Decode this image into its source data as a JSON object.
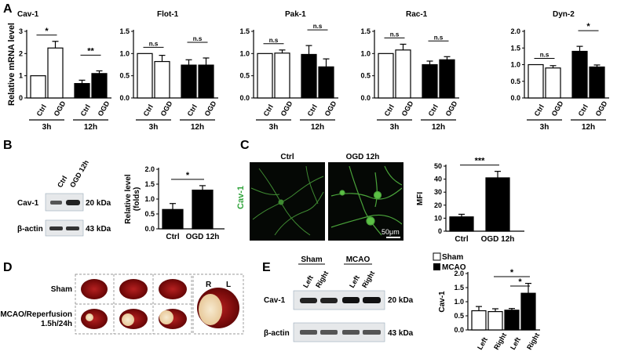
{
  "panels": {
    "A": "A",
    "B": "B",
    "C": "C",
    "D": "D",
    "E": "E"
  },
  "panel_a": {
    "ylabel": "Relative mRNA level",
    "bar_labels": [
      "Ctrl",
      "OGD",
      "Ctrl",
      "OGD"
    ],
    "groups": [
      "3h",
      "12h"
    ]
  },
  "chart_data": [
    {
      "type": "bar",
      "title": "Cav-1",
      "ylabel": "Relative mRNA level",
      "categories": [
        "Ctrl 3h",
        "OGD 3h",
        "Ctrl 12h",
        "OGD 12h"
      ],
      "values": [
        1.0,
        2.25,
        0.65,
        1.1
      ],
      "errors": [
        0,
        0.3,
        0.15,
        0.12
      ],
      "ylim": [
        0,
        3
      ],
      "fill": [
        "white",
        "white",
        "black",
        "black"
      ],
      "significance": [
        {
          "between": [
            0,
            1
          ],
          "label": "*"
        },
        {
          "between": [
            2,
            3
          ],
          "label": "**"
        }
      ]
    },
    {
      "type": "bar",
      "title": "Flot-1",
      "categories": [
        "Ctrl 3h",
        "OGD 3h",
        "Ctrl 12h",
        "OGD 12h"
      ],
      "values": [
        1.0,
        0.82,
        0.74,
        0.74
      ],
      "errors": [
        0,
        0.14,
        0.12,
        0.16
      ],
      "ylim": [
        0,
        1.5
      ],
      "yticks": [
        "0.0",
        "0.5",
        "1.0",
        "1.5"
      ],
      "fill": [
        "white",
        "white",
        "black",
        "black"
      ],
      "significance": [
        {
          "between": [
            0,
            1
          ],
          "label": "n.s"
        },
        {
          "between": [
            2,
            3
          ],
          "label": "n.s"
        }
      ]
    },
    {
      "type": "bar",
      "title": "Pak-1",
      "categories": [
        "Ctrl 3h",
        "OGD 3h",
        "Ctrl 12h",
        "OGD 12h"
      ],
      "values": [
        1.0,
        1.01,
        0.98,
        0.7
      ],
      "errors": [
        0,
        0.07,
        0.2,
        0.18
      ],
      "ylim": [
        0,
        1.5
      ],
      "yticks": [
        "0.0",
        "0.5",
        "1.0",
        "1.5"
      ],
      "fill": [
        "white",
        "white",
        "black",
        "black"
      ],
      "significance": [
        {
          "between": [
            0,
            1
          ],
          "label": "n.s"
        },
        {
          "between": [
            2,
            3
          ],
          "label": "n.s"
        }
      ]
    },
    {
      "type": "bar",
      "title": "Rac-1",
      "categories": [
        "Ctrl 3h",
        "OGD 3h",
        "Ctrl 12h",
        "OGD 12h"
      ],
      "values": [
        1.0,
        1.08,
        0.75,
        0.86
      ],
      "errors": [
        0,
        0.13,
        0.08,
        0.07
      ],
      "ylim": [
        0,
        1.5
      ],
      "yticks": [
        "0.0",
        "0.5",
        "1.0",
        "1.5"
      ],
      "fill": [
        "white",
        "white",
        "black",
        "black"
      ],
      "significance": [
        {
          "between": [
            0,
            1
          ],
          "label": "n.s"
        },
        {
          "between": [
            2,
            3
          ],
          "label": "n.s"
        }
      ]
    },
    {
      "type": "bar",
      "title": "Dyn-2",
      "categories": [
        "Ctrl 3h",
        "OGD 3h",
        "Ctrl 12h",
        "OGD 12h"
      ],
      "values": [
        1.0,
        0.9,
        1.4,
        0.93
      ],
      "errors": [
        0,
        0.07,
        0.15,
        0.06
      ],
      "ylim": [
        0,
        2
      ],
      "yticks": [
        "0.0",
        "0.5",
        "1.0",
        "1.5",
        "2.0"
      ],
      "fill": [
        "white",
        "white",
        "black",
        "black"
      ],
      "significance": [
        {
          "between": [
            0,
            1
          ],
          "label": "n.s"
        },
        {
          "between": [
            2,
            3
          ],
          "label": "*"
        }
      ]
    },
    {
      "type": "bar",
      "ylabel": "Relative level (folds)",
      "categories": [
        "Ctrl",
        "OGD 12h"
      ],
      "values": [
        0.65,
        1.3
      ],
      "errors": [
        0.2,
        0.15
      ],
      "ylim": [
        0,
        2
      ],
      "yticks": [
        "0.0",
        "0.5",
        "1.0",
        "1.5",
        "2.0"
      ],
      "fill": [
        "black",
        "black"
      ],
      "significance": [
        {
          "between": [
            0,
            1
          ],
          "label": "*"
        }
      ]
    },
    {
      "type": "bar",
      "ylabel": "MFI",
      "categories": [
        "Ctrl",
        "OGD 12h"
      ],
      "values": [
        11,
        41
      ],
      "errors": [
        2,
        5
      ],
      "ylim": [
        0,
        50
      ],
      "yticks": [
        "0",
        "10",
        "20",
        "30",
        "40",
        "50"
      ],
      "fill": [
        "black",
        "black"
      ],
      "significance": [
        {
          "between": [
            0,
            1
          ],
          "label": "***"
        }
      ]
    },
    {
      "type": "bar",
      "ylabel": "Cav-1",
      "categories": [
        "Left",
        "Right",
        "Left",
        "Right"
      ],
      "values": [
        0.68,
        0.65,
        0.7,
        1.3
      ],
      "errors": [
        0.15,
        0.1,
        0.06,
        0.35
      ],
      "ylim": [
        0,
        2
      ],
      "yticks": [
        "0.0",
        "0.5",
        "1.0",
        "1.5",
        "2.0"
      ],
      "fill": [
        "white",
        "white",
        "black",
        "black"
      ],
      "legend": [
        "Sham",
        "MCAO"
      ],
      "significance": [
        {
          "between": [
            1,
            3
          ],
          "label": "*"
        },
        {
          "between": [
            2,
            3
          ],
          "label": "*"
        }
      ]
    }
  ],
  "panel_b": {
    "lanes": [
      "Ctrl",
      "OGD 12h"
    ],
    "rows": [
      "Cav-1",
      "β-actin"
    ],
    "sizes": [
      "20 kDa",
      "43 kDa"
    ]
  },
  "panel_c": {
    "headers": [
      "Ctrl",
      "OGD 12h"
    ],
    "stain": "Cav-1",
    "scale": "50μm"
  },
  "panel_d": {
    "rows": [
      "Sham",
      "MCAO/Reperfusion",
      "1.5h/24h"
    ],
    "hemispheres": [
      "R",
      "L"
    ]
  },
  "panel_e": {
    "groups": [
      "Sham",
      "MCAO"
    ],
    "lanes": [
      "Left",
      "Right",
      "Left",
      "Right"
    ],
    "rows": [
      "Cav-1",
      "β-actin"
    ],
    "sizes": [
      "20 kDa",
      "43 kDa"
    ]
  },
  "colors": {
    "cav1_label": "#2fa33a",
    "brain_dark": "#7a0b0b",
    "brain_light": "#f2dfc0",
    "blot_bg": "#e6e8ea"
  }
}
